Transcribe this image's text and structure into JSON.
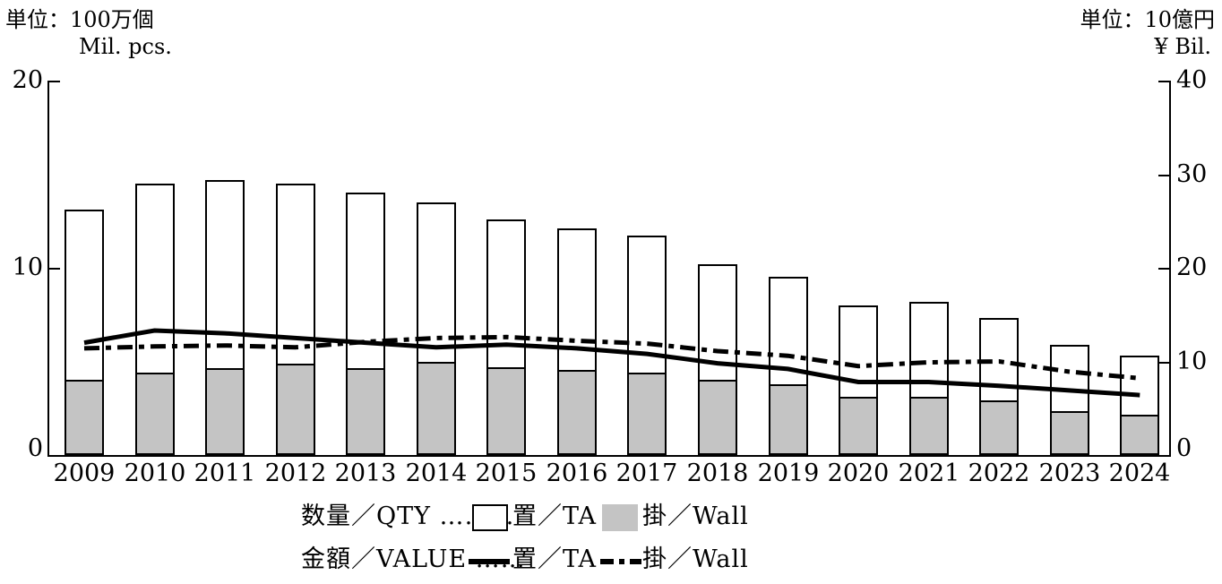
{
  "header": {
    "left_unit_jp": "単位：100万個",
    "left_unit_en": "Mil. pcs.",
    "right_unit_jp": "単位：10億円",
    "right_unit_en": "¥ Bil."
  },
  "legend": {
    "qty_row_label": "数量／QTY ………",
    "value_row_label": "金額／VALUE ……",
    "qty_ta_label": "置／TA",
    "qty_wall_label": "掛／Wall",
    "value_ta_label": "置／TA",
    "value_wall_label": "掛／Wall"
  },
  "colors": {
    "wall_bar_fill": "#c4c4c4",
    "ta_bar_fill": "#ffffff",
    "line_color": "#000000",
    "axis_color": "#000000"
  },
  "chart_data": {
    "type": "bar-line-combo",
    "categories": [
      "2009",
      "2010",
      "2011",
      "2012",
      "2013",
      "2014",
      "2015",
      "2016",
      "2017",
      "2018",
      "2019",
      "2020",
      "2021",
      "2022",
      "2023",
      "2024"
    ],
    "left_axis": {
      "title": "単位：100万個 / Mil. pcs.",
      "min": 0,
      "max": 20,
      "ticks": [
        20,
        10,
        0
      ],
      "applies_to": "bars"
    },
    "right_axis": {
      "title": "単位：10億円 / ¥ Bil.",
      "min": 0,
      "max": 40,
      "ticks": [
        40,
        30,
        20,
        10,
        0
      ],
      "applies_to": "lines"
    },
    "grid": false,
    "legend_position": "bottom",
    "bars": {
      "stacking": "wall segment drawn at bottom inside total bar",
      "total_qty_mil_pcs": [
        13.1,
        14.5,
        14.7,
        14.5,
        14.0,
        13.5,
        12.6,
        12.1,
        11.7,
        10.2,
        9.5,
        8.0,
        8.2,
        7.3,
        5.9,
        5.3
      ],
      "series": [
        {
          "name": "置／TA",
          "fill": "#ffffff",
          "values_mil_pcs": [
            9.2,
            10.2,
            10.15,
            9.7,
            9.45,
            8.6,
            8.0,
            7.65,
            7.4,
            6.3,
            5.8,
            5.0,
            5.2,
            4.5,
            3.65,
            3.25
          ]
        },
        {
          "name": "掛／Wall",
          "fill": "#c4c4c4",
          "values_mil_pcs": [
            3.9,
            4.3,
            4.55,
            4.8,
            4.55,
            4.9,
            4.6,
            4.45,
            4.3,
            3.9,
            3.7,
            3.0,
            3.0,
            2.8,
            2.25,
            2.05
          ]
        }
      ]
    },
    "lines": [
      {
        "name": "置／TA",
        "style": "solid",
        "axis": "right",
        "values_yen_bil": [
          12.0,
          13.3,
          13.0,
          12.5,
          12.0,
          11.5,
          11.8,
          11.4,
          10.8,
          9.8,
          9.2,
          7.8,
          7.8,
          7.4,
          6.9,
          6.4
        ]
      },
      {
        "name": "掛／Wall",
        "style": "dash-dot",
        "axis": "right",
        "values_yen_bil": [
          11.4,
          11.6,
          11.7,
          11.5,
          12.1,
          12.5,
          12.6,
          12.2,
          11.9,
          11.1,
          10.6,
          9.5,
          9.9,
          10.0,
          8.9,
          8.2
        ]
      }
    ]
  }
}
